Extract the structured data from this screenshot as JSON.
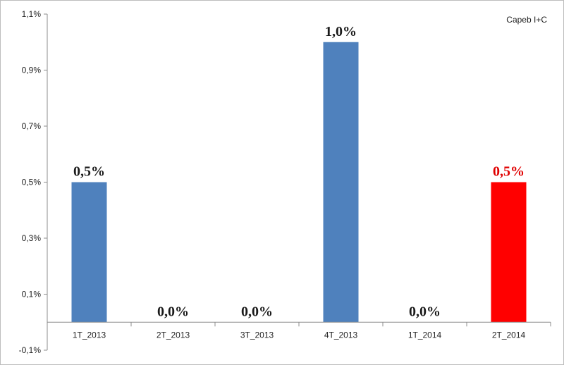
{
  "chart_data": {
    "type": "bar",
    "source_label": "Capeb I+C",
    "categories": [
      "1T_2013",
      "2T_2013",
      "3T_2013",
      "4T_2013",
      "1T_2014",
      "2T_2014"
    ],
    "values": [
      0.5,
      0.0,
      0.0,
      1.0,
      0.0,
      0.5
    ],
    "data_labels": [
      "0,5%",
      "0,0%",
      "0,0%",
      "1,0%",
      "0,0%",
      "0,5%"
    ],
    "ylim": [
      -0.1,
      1.1
    ],
    "y_ticks": [
      -0.1,
      0.1,
      0.3,
      0.5,
      0.7,
      0.9,
      1.1
    ],
    "y_tick_labels": [
      "-0,1%",
      "0,1%",
      "0,3%",
      "0,5%",
      "0,7%",
      "0,9%",
      "1,1%"
    ],
    "grid": false,
    "legend": "none",
    "colors": {
      "default_bar": "#4f81bd",
      "highlight_bar": "#ff0000",
      "default_label": "#1a1a1a",
      "highlight_label": "#e00000"
    },
    "highlight_index": 5
  }
}
